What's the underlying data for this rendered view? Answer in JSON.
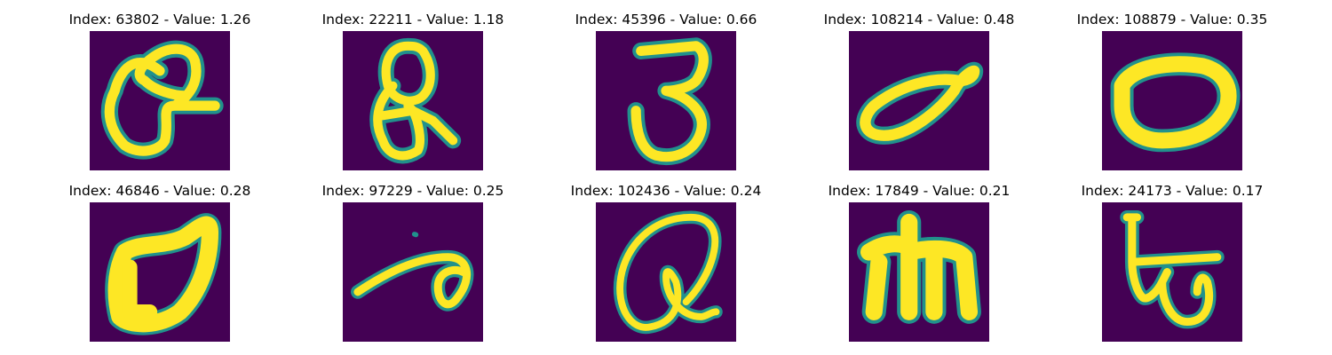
{
  "colors": {
    "background": "#440154",
    "edge": "#21918c",
    "stroke": "#fde725"
  },
  "panels": [
    {
      "title": "Index: 63802 - Value: 1.26"
    },
    {
      "title": "Index: 22211 - Value: 1.18"
    },
    {
      "title": "Index: 45396 - Value: 0.66"
    },
    {
      "title": "Index: 108214 - Value: 0.48"
    },
    {
      "title": "Index: 108879 - Value: 0.35"
    },
    {
      "title": "Index: 46846 - Value: 0.28"
    },
    {
      "title": "Index: 97229 - Value: 0.25"
    },
    {
      "title": "Index: 102436 - Value: 0.24"
    },
    {
      "title": "Index: 17849 - Value: 0.21"
    },
    {
      "title": "Index: 24173 - Value: 0.17"
    }
  ]
}
